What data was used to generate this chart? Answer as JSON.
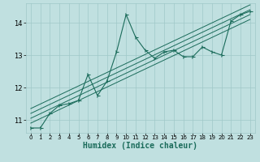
{
  "title": "",
  "xlabel": "Humidex (Indice chaleur)",
  "bg_color": "#c0e0e0",
  "grid_color": "#a0c8c8",
  "line_color": "#1a6b5a",
  "xlim": [
    -0.5,
    23.5
  ],
  "ylim": [
    10.6,
    14.6
  ],
  "yticks": [
    11,
    12,
    13,
    14
  ],
  "xticks": [
    0,
    1,
    2,
    3,
    4,
    5,
    6,
    7,
    8,
    9,
    10,
    11,
    12,
    13,
    14,
    15,
    16,
    17,
    18,
    19,
    20,
    21,
    22,
    23
  ],
  "scatter_x": [
    0,
    1,
    2,
    3,
    4,
    5,
    6,
    7,
    8,
    9,
    10,
    11,
    12,
    13,
    14,
    15,
    16,
    17,
    18,
    19,
    20,
    21,
    22,
    23
  ],
  "scatter_y": [
    10.75,
    10.75,
    11.2,
    11.45,
    11.5,
    11.6,
    12.4,
    11.75,
    12.2,
    13.1,
    14.25,
    13.55,
    13.15,
    12.9,
    13.1,
    13.15,
    12.95,
    12.95,
    13.25,
    13.1,
    13.0,
    14.05,
    14.25,
    14.35
  ],
  "reg_lines": [
    {
      "x": [
        0,
        23
      ],
      "y": [
        10.9,
        14.1
      ]
    },
    {
      "x": [
        0,
        23
      ],
      "y": [
        11.05,
        14.25
      ]
    },
    {
      "x": [
        0,
        23
      ],
      "y": [
        11.2,
        14.4
      ]
    },
    {
      "x": [
        0,
        23
      ],
      "y": [
        11.35,
        14.55
      ]
    }
  ]
}
